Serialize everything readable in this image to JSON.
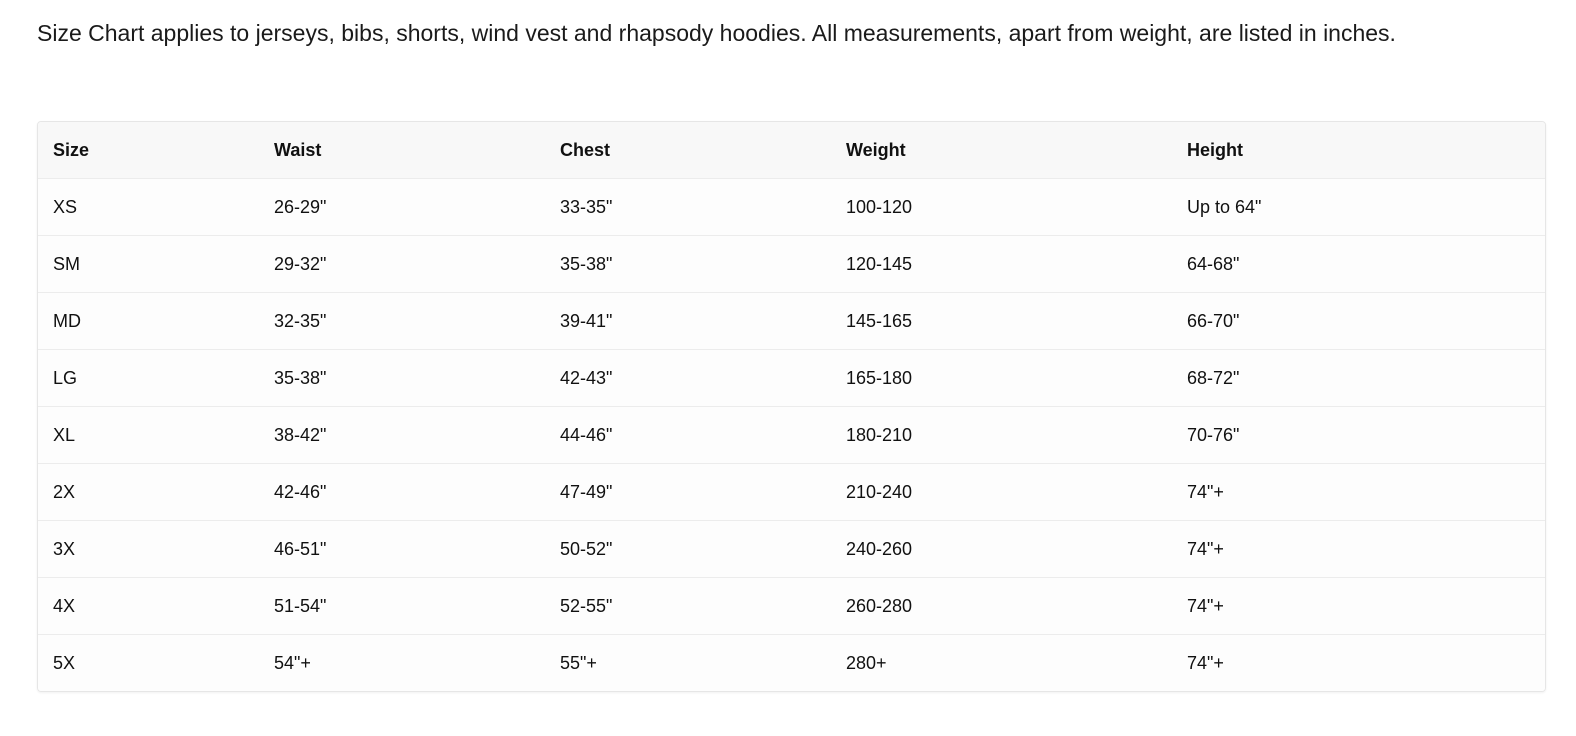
{
  "intro": "Size Chart applies to jerseys, bibs, shorts, wind vest and rhapsody hoodies. All measurements, apart from weight, are listed in inches.",
  "table": {
    "headers": [
      "Size",
      "Waist",
      "Chest",
      "Weight",
      "Height"
    ],
    "rows": [
      [
        "XS",
        "26-29\"",
        "33-35\"",
        "100-120",
        "Up to 64\""
      ],
      [
        "SM",
        "29-32\"",
        "35-38\"",
        "120-145",
        "64-68\""
      ],
      [
        "MD",
        "32-35\"",
        "39-41\"",
        "145-165",
        "66-70\""
      ],
      [
        "LG",
        "35-38\"",
        "42-43\"",
        "165-180",
        "68-72\""
      ],
      [
        "XL",
        "38-42\"",
        "44-46\"",
        "180-210",
        "70-76\""
      ],
      [
        "2X",
        "42-46\"",
        "47-49\"",
        "210-240",
        "74\"+"
      ],
      [
        "3X",
        "46-51\"",
        "50-52\"",
        "240-260",
        "74\"+"
      ],
      [
        "4X",
        "51-54\"",
        "52-55\"",
        "260-280",
        "74\"+"
      ],
      [
        "5X",
        "54\"+",
        "55\"+",
        "280+",
        "74\"+"
      ]
    ]
  }
}
